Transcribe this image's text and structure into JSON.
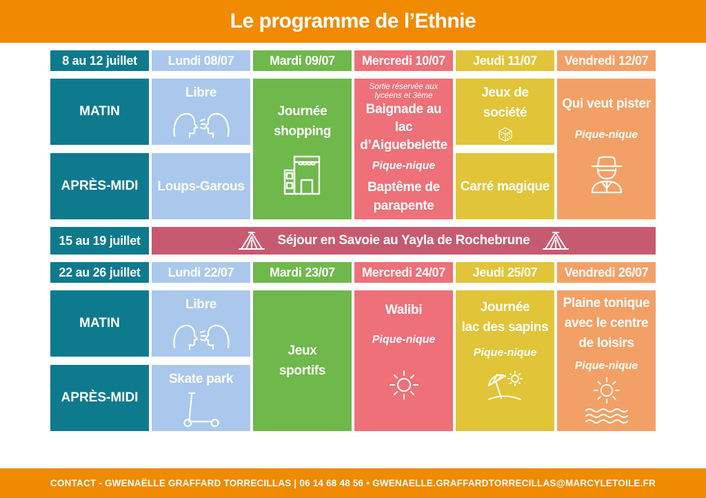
{
  "title": "Le programme de l’Ethnie",
  "week1": {
    "range": "8 au 12 juillet",
    "days": [
      "Lundi 08/07",
      "Mardi 09/07",
      "Mercredi 10/07",
      "Jeudi 11/07",
      "Vendredi 12/07"
    ],
    "matin_label": "MATIN",
    "apres_label": "APRÈS-MIDI",
    "lundi_matin": "Libre",
    "lundi_apres": "Loups-Garous",
    "mardi": [
      "Journée",
      "shopping"
    ],
    "mercredi_note": [
      "Sortie réservée aux",
      "lycéens et 3ème"
    ],
    "mercredi_matin": [
      "Baignade au lac",
      "d’Aiguebelette"
    ],
    "mercredi_pn": "Pique-nique",
    "mercredi_apres": [
      "Baptême  de",
      "parapente"
    ],
    "jeudi_matin": "Jeux de société",
    "jeudi_apres": "Carré magique",
    "vendredi_title": "Qui veut pister",
    "vendredi_pn": "Pique-nique"
  },
  "week2": {
    "range": "15 au 19 juillet",
    "sejour": "Séjour en Savoie au Yayla de Rochebrune"
  },
  "week3": {
    "range": "22 au 26 juillet",
    "days": [
      "Lundi 22/07",
      "Mardi 23/07",
      "Mercredi 24/07",
      "Jeudi 25/07",
      "Vendredi 26/07"
    ],
    "matin_label": "MATIN",
    "apres_label": "APRÈS-MIDI",
    "lundi_matin": "Libre",
    "lundi_apres": "Skate park",
    "mardi": [
      "Jeux",
      "sportifs"
    ],
    "mercredi_title": "Walibi",
    "mercredi_pn": "Pique-nique",
    "jeudi_title": [
      "Journée",
      "lac des sapins"
    ],
    "jeudi_pn": "Pique-nique",
    "vendredi_title": [
      "Plaine tonique",
      "avec le centre",
      "de loisirs"
    ],
    "vendredi_pn": "Pique-nique"
  },
  "footer": "CONTACT - GWENAËLLE GRAFFARD TORRECILLAS | 06 14 68 48 56 • GWENAELLE.GRAFFARDTORRECILLAS@MARCYLETOILE.FR",
  "colors": {
    "banner": "#f08a00",
    "teal": "#0e7a8e",
    "blue": "#a9c8ec",
    "green": "#6fb84b",
    "pink": "#ee7079",
    "yellow": "#e1c437",
    "orange": "#f3a066",
    "sejour": "#c75a70"
  },
  "icons": [
    "talking-heads-icon",
    "shop-icon",
    "dice-icon",
    "detective-icon",
    "tent-icon",
    "sun-icon",
    "beach-umbrella-icon",
    "waves-icon",
    "scooter-icon"
  ]
}
